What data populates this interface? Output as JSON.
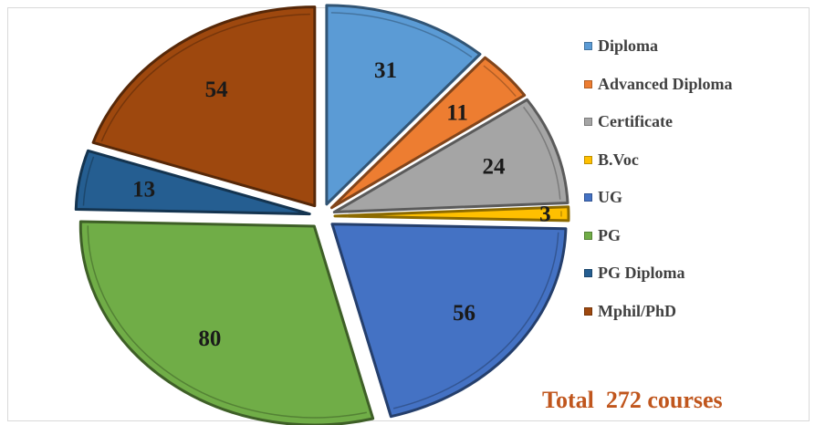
{
  "chart_data": {
    "type": "pie",
    "title": "",
    "categories": [
      "Diploma",
      "Advanced Diploma",
      "Certificate",
      "B.Voc",
      "UG",
      "PG",
      "PG Diploma",
      "Mphil/PhD"
    ],
    "values": [
      31,
      11,
      24,
      3,
      56,
      80,
      13,
      54
    ],
    "colors": [
      "#5b9bd5",
      "#ed7d31",
      "#a5a5a5",
      "#ffc000",
      "#4472c4",
      "#70ad47",
      "#255e91",
      "#9e480e"
    ],
    "exploded": true,
    "data_labels": [
      "31",
      "11",
      "24",
      "3",
      "56",
      "80",
      "13",
      "54"
    ],
    "legend_position": "right",
    "total_text": "Total  272 courses"
  }
}
